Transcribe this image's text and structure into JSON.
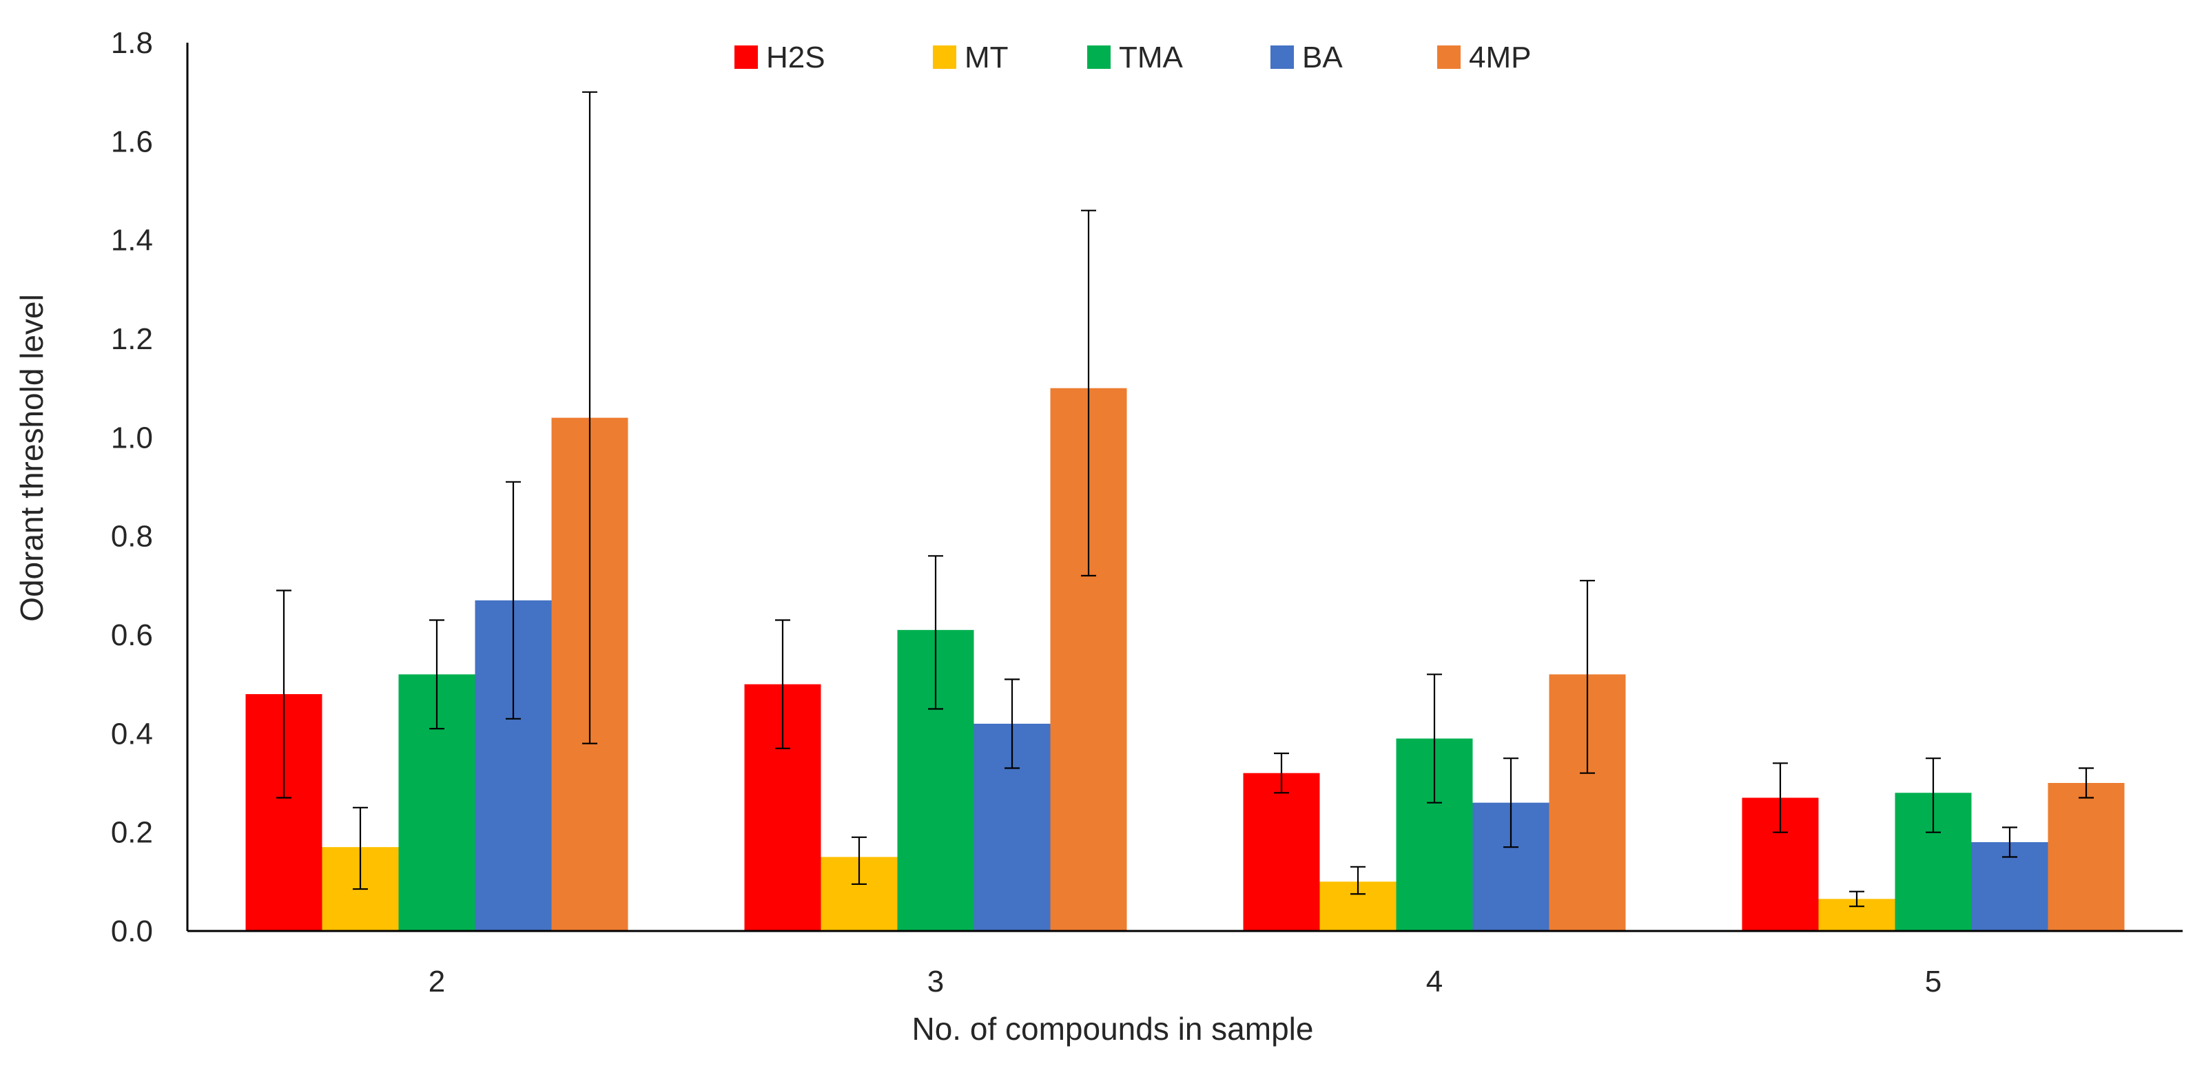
{
  "chart_data": {
    "type": "bar",
    "title": "",
    "xlabel": "No. of compounds in sample",
    "ylabel": "Odorant threshold level",
    "categories": [
      "2",
      "3",
      "4",
      "5"
    ],
    "ylim": [
      0,
      1.8
    ],
    "yticks": [
      "0.0",
      "0.2",
      "0.4",
      "0.6",
      "0.8",
      "1.0",
      "1.2",
      "1.4",
      "1.6",
      "1.8"
    ],
    "grid": false,
    "legend_position": "top-center",
    "series": [
      {
        "name": "H2S",
        "color": "#ff0000",
        "values": [
          0.48,
          0.5,
          0.32,
          0.27
        ],
        "err_low": [
          0.27,
          0.37,
          0.28,
          0.2
        ],
        "err_high": [
          0.69,
          0.63,
          0.36,
          0.34
        ]
      },
      {
        "name": "MT",
        "color": "#ffc000",
        "values": [
          0.17,
          0.15,
          0.1,
          0.065
        ],
        "err_low": [
          0.085,
          0.095,
          0.075,
          0.05
        ],
        "err_high": [
          0.25,
          0.19,
          0.13,
          0.08
        ]
      },
      {
        "name": "TMA",
        "color": "#00b050",
        "values": [
          0.52,
          0.61,
          0.39,
          0.28
        ],
        "err_low": [
          0.41,
          0.45,
          0.26,
          0.2
        ],
        "err_high": [
          0.63,
          0.76,
          0.52,
          0.35
        ]
      },
      {
        "name": "BA",
        "color": "#4472c4",
        "values": [
          0.67,
          0.42,
          0.26,
          0.18
        ],
        "err_low": [
          0.43,
          0.33,
          0.17,
          0.15
        ],
        "err_high": [
          0.91,
          0.51,
          0.35,
          0.21
        ]
      },
      {
        "name": "4MP",
        "color": "#ed7d31",
        "values": [
          1.04,
          1.1,
          0.52,
          0.3
        ],
        "err_low": [
          0.38,
          0.72,
          0.32,
          0.27
        ],
        "err_high": [
          1.7,
          1.46,
          0.71,
          0.33
        ]
      }
    ]
  }
}
